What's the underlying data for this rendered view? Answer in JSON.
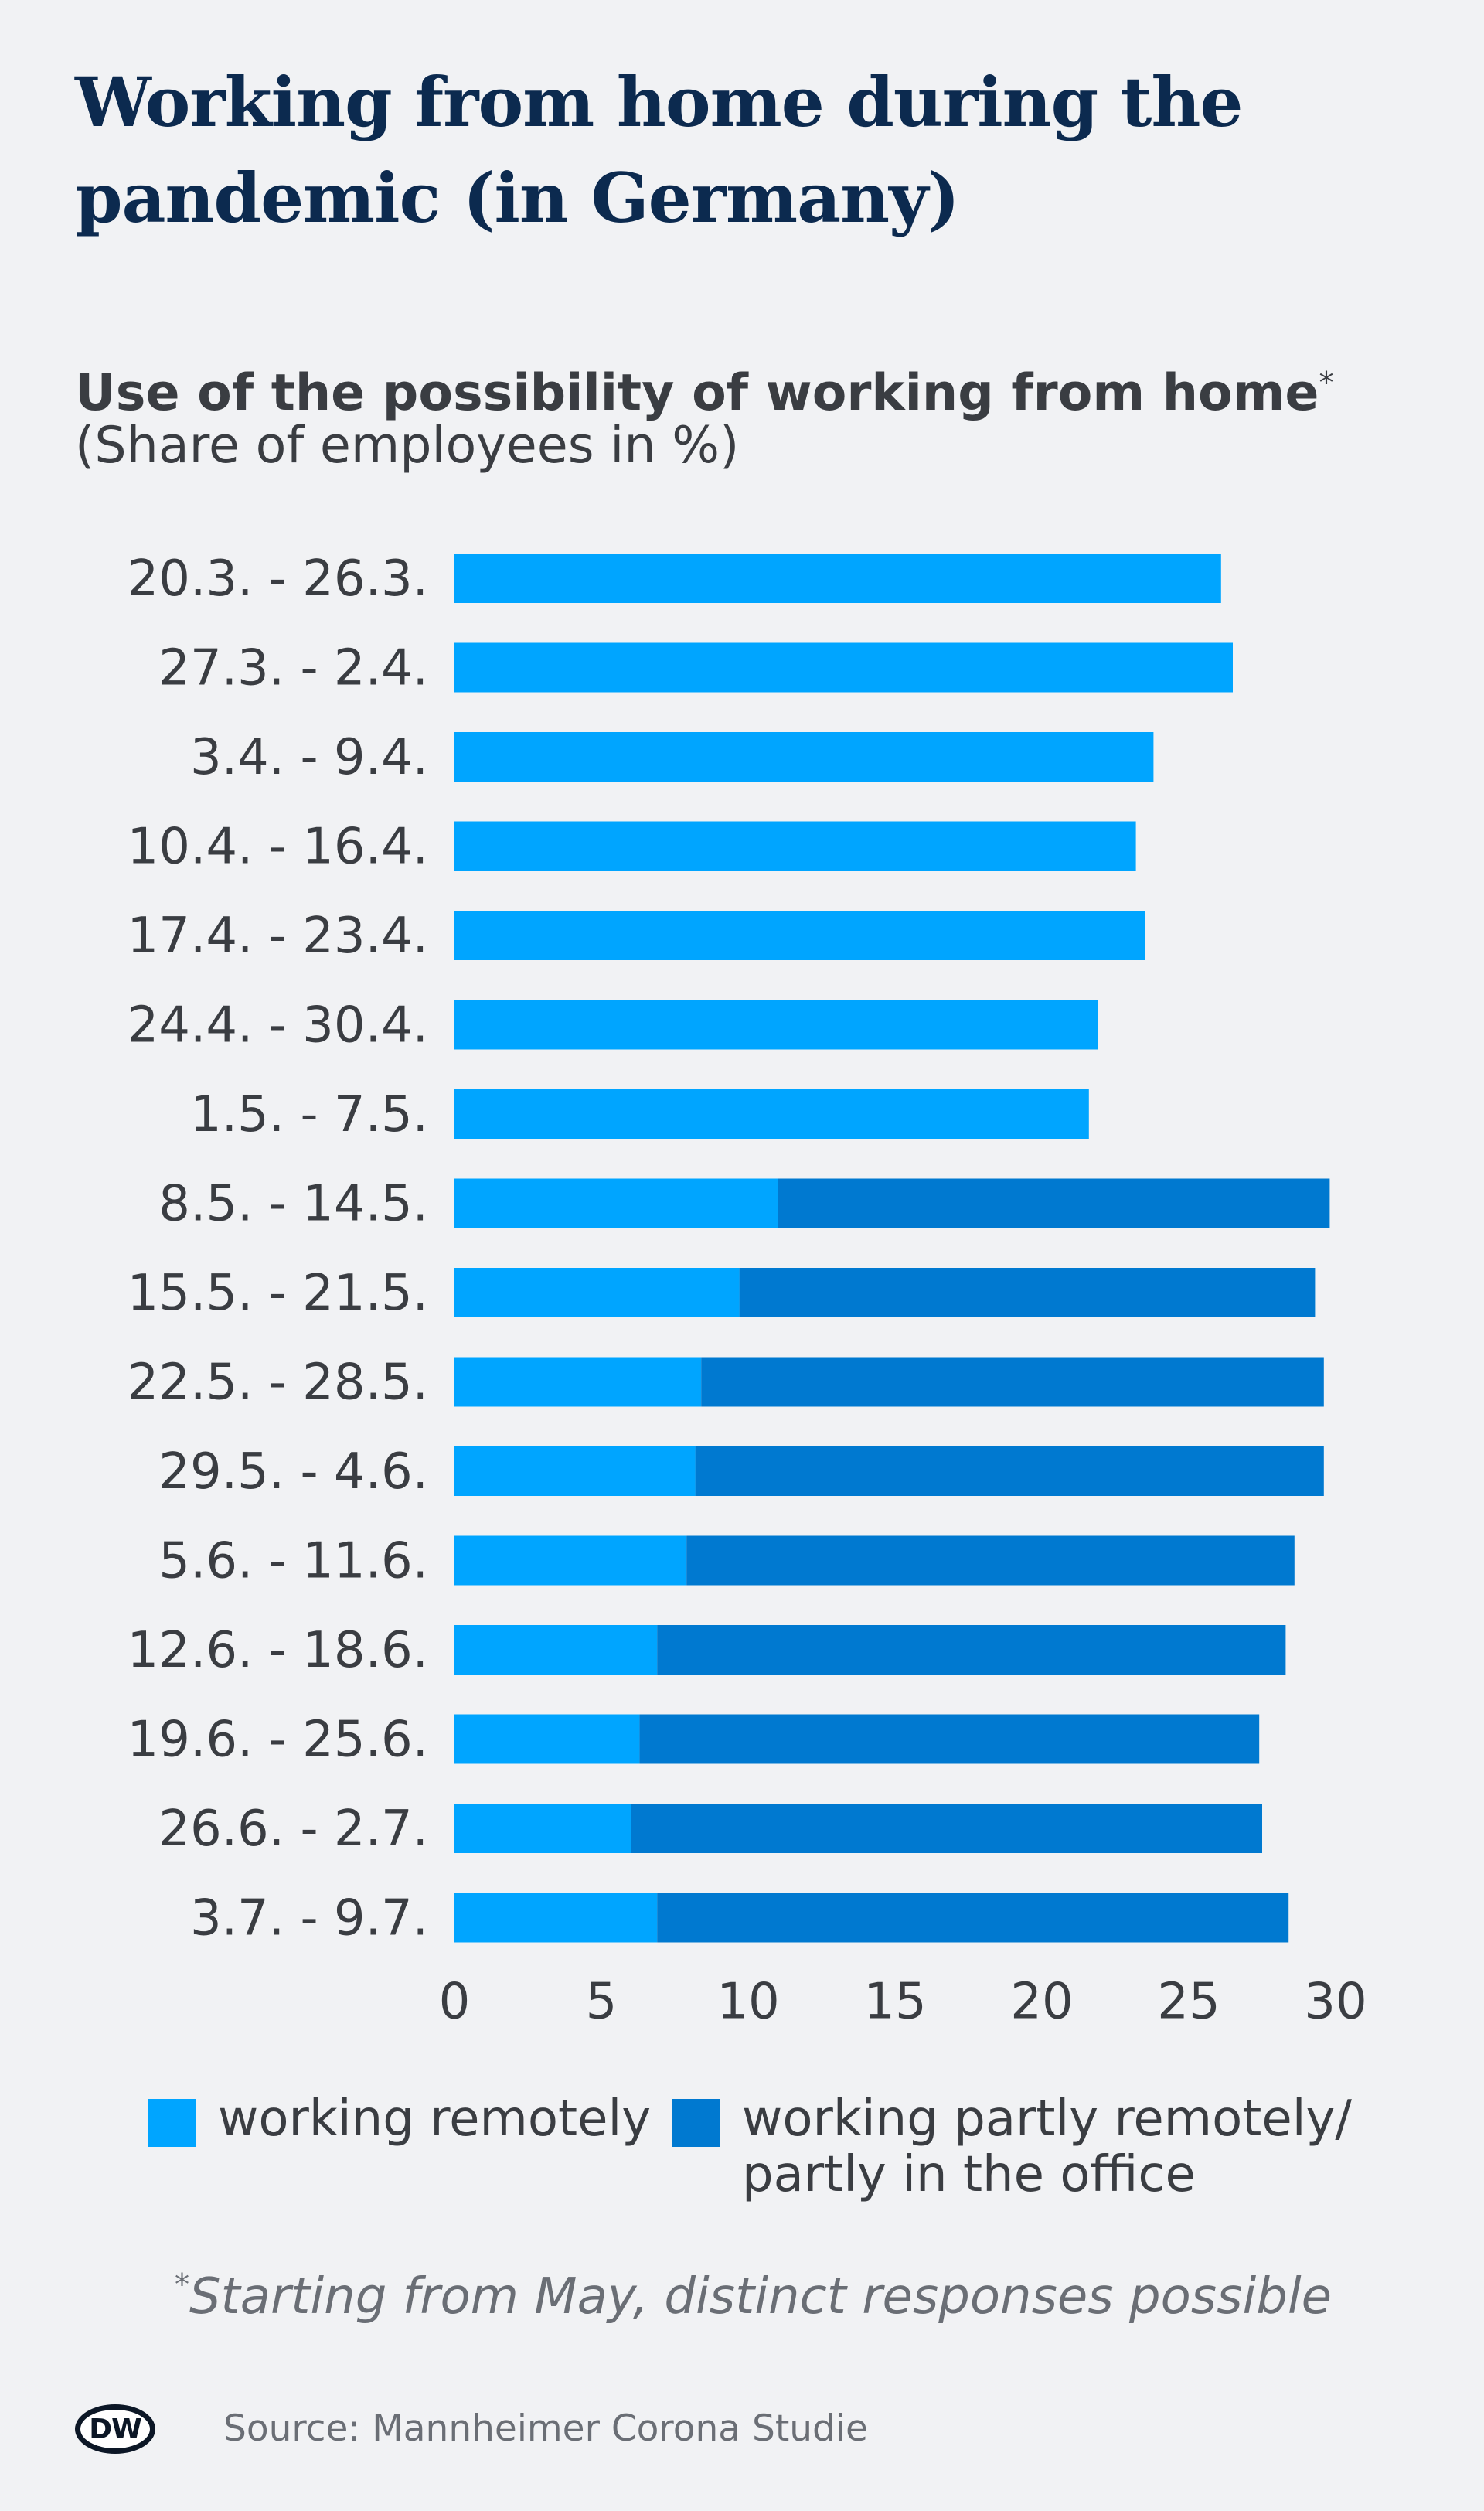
{
  "title": "Working from home during the pandemic (in Germany)",
  "subtitle": "Use of the possibility of working from home",
  "subtitle_marker": "*",
  "subtitle_unit": "(Share of employees in %)",
  "colors": {
    "remote": "#00a5ff",
    "partly": "#0079d0",
    "text": "#3a3d42",
    "title": "#0c2a4f",
    "background": "#f1f2f4"
  },
  "legend": {
    "remote_label": "working remotely",
    "partly_label_line1": "working partly remotely/",
    "partly_label_line2": "partly in the office"
  },
  "footnote_marker": "*",
  "footnote": "Starting from May, distinct responses possible",
  "logo_text": "DW",
  "source": "Source: Mannheimer Corona Studie",
  "chart_data": {
    "type": "bar",
    "orientation": "horizontal",
    "stacked": true,
    "categories": [
      "20.3. - 26.3.",
      "27.3. - 2.4.",
      "3.4. - 9.4.",
      "10.4. - 16.4.",
      "17.4. - 23.4.",
      "24.4. - 30.4.",
      "1.5. - 7.5.",
      "8.5. - 14.5.",
      "15.5. - 21.5.",
      "22.5. - 28.5.",
      "29.5. - 4.6.",
      "5.6. - 11.6.",
      "12.6. - 18.6.",
      "19.6. - 25.6.",
      "26.6. - 2.7.",
      "3.7. - 9.7."
    ],
    "series": [
      {
        "name": "working remotely",
        "values": [
          26.1,
          26.5,
          23.8,
          23.2,
          23.5,
          21.9,
          21.6,
          11.0,
          9.7,
          8.4,
          8.2,
          7.9,
          6.9,
          6.3,
          6.0,
          6.9
        ]
      },
      {
        "name": "working partly remotely/partly in the office",
        "values": [
          0,
          0,
          0,
          0,
          0,
          0,
          0,
          18.8,
          19.6,
          21.2,
          21.4,
          20.7,
          21.4,
          21.1,
          21.5,
          21.5
        ]
      }
    ],
    "xlim": [
      0,
      30
    ],
    "xticks": [
      "0",
      "5",
      "10",
      "15",
      "20",
      "25",
      "30"
    ],
    "grid": false,
    "legend_position": "bottom"
  }
}
